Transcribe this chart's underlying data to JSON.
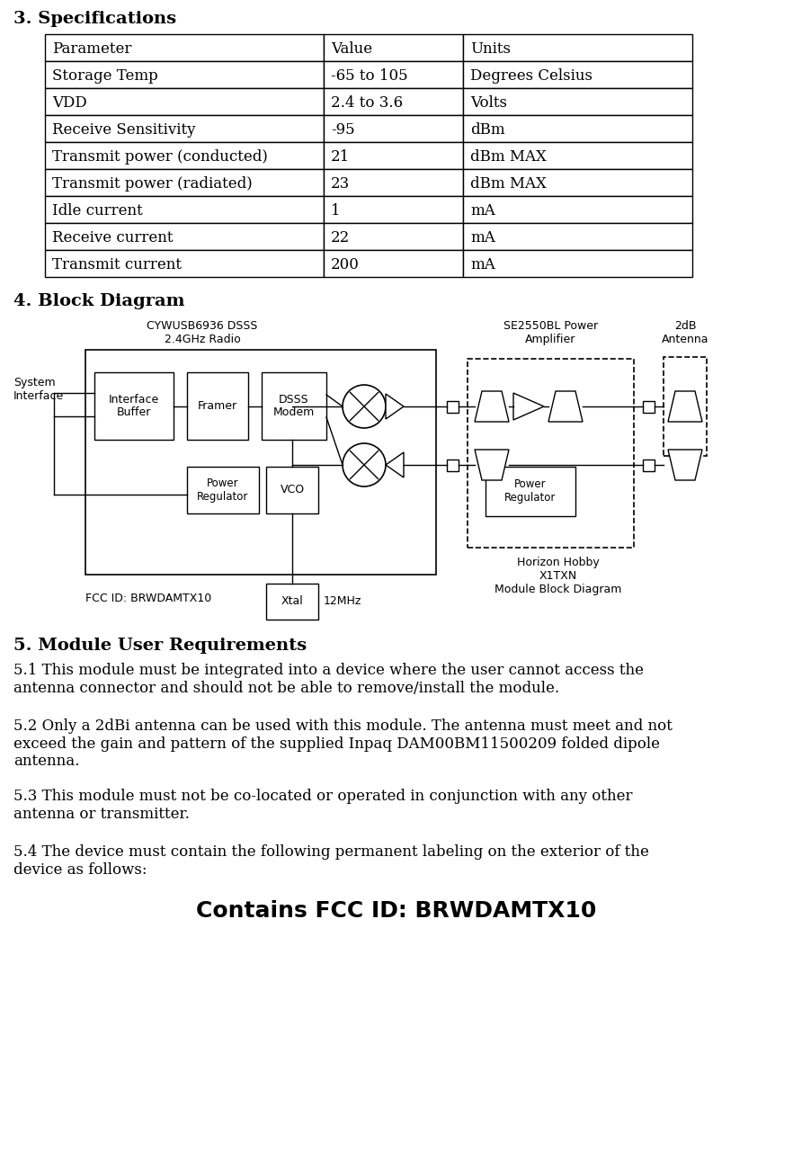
{
  "title_specs": "3. Specifications",
  "table_headers": [
    "Parameter",
    "Value",
    "Units"
  ],
  "table_rows": [
    [
      "Storage Temp",
      "-65 to 105",
      "Degrees Celsius"
    ],
    [
      "VDD",
      "2.4 to 3.6",
      "Volts"
    ],
    [
      "Receive Sensitivity",
      "-95",
      "dBm"
    ],
    [
      "Transmit power (conducted)",
      "21",
      "dBm MAX"
    ],
    [
      "Transmit power (radiated)",
      "23",
      "dBm MAX"
    ],
    [
      "Idle current",
      "1",
      "mA"
    ],
    [
      "Receive current",
      "22",
      "mA"
    ],
    [
      "Transmit current",
      "200",
      "mA"
    ]
  ],
  "title_block": "4. Block Diagram",
  "block_label_cypress": "CYWUSB6936 DSSS\n2.4GHz Radio",
  "block_label_se": "SE2550BL Power\nAmplifier",
  "block_label_antenna": "2dB\nAntenna",
  "block_label_system": "System\nInterface",
  "block_label_interface": "Interface\nBuffer",
  "block_label_framer": "Framer",
  "block_label_dsss": "DSSS\nModem",
  "block_label_power_reg": "Power\nRegulator",
  "block_label_vco": "VCO",
  "block_label_xtal": "Xtal",
  "block_label_12mhz": "12MHz",
  "block_label_pa_power_reg": "Power\nRegulator",
  "block_label_horizon": "Horizon Hobby\nX1TXN\nModule Block Diagram",
  "block_label_fcc": "FCC ID: BRWDAMTX10",
  "title_requirements": "5. Module User Requirements",
  "req_51": "5.1 This module must be integrated into a device where the user cannot access the\nantenna connector and should not be able to remove/install the module.",
  "req_52": "5.2 Only a 2dBi antenna can be used with this module. The antenna must meet and not\nexceed the gain and pattern of the supplied Inpaq DAM00BM11500209 folded dipole\nantenna.",
  "req_53": "5.3 This module must not be co-located or operated in conjunction with any other\nantenna or transmitter.",
  "req_54": "5.4 The device must contain the following permanent labeling on the exterior of the\ndevice as follows:",
  "final_text": "Contains FCC ID: BRWDAMTX10",
  "bg_color": "#ffffff",
  "text_color": "#000000"
}
